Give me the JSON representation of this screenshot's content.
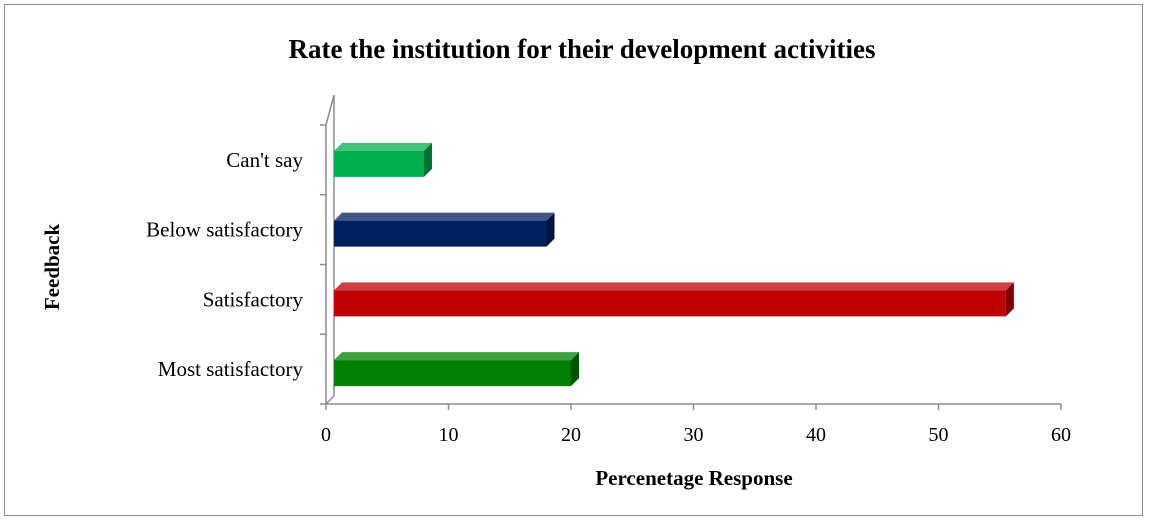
{
  "chart_data": {
    "type": "bar",
    "orientation": "horizontal",
    "style": "3d",
    "title": "Rate the institution for their development activities",
    "xlabel": "Percenetage Response",
    "ylabel": "Feedback",
    "categories": [
      "Most satisfactory",
      "Satisfactory",
      "Below satisfactory",
      "Can't say"
    ],
    "values": [
      20,
      55.5,
      18,
      8
    ],
    "bar_colors": [
      "#008000",
      "#c00000",
      "#002060",
      "#00b050"
    ],
    "xlim": [
      0,
      60
    ],
    "x_ticks": [
      "0",
      "10",
      "20",
      "30",
      "40",
      "50",
      "60"
    ],
    "grid": false,
    "legend": "none"
  }
}
